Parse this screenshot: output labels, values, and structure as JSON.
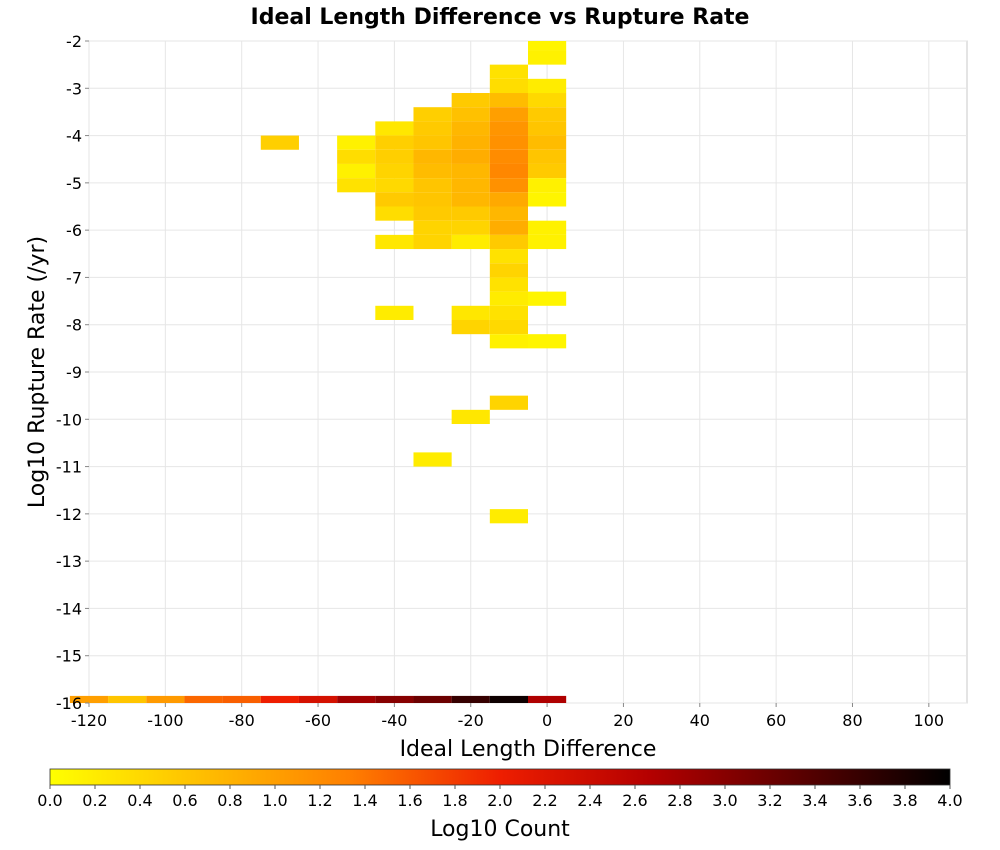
{
  "chart_data": {
    "type": "heatmap",
    "title": "Ideal Length Difference vs Rupture Rate",
    "xlabel": "Ideal Length Difference",
    "ylabel": "Log10 Rupture Rate (/yr)",
    "xlim": [
      -120,
      110
    ],
    "ylim": [
      -16,
      -2
    ],
    "x_ticks": [
      "-120",
      "-100",
      "-80",
      "-60",
      "-40",
      "-20",
      "0",
      "20",
      "40",
      "60",
      "80",
      "100"
    ],
    "y_ticks": [
      "-2",
      "-3",
      "-4",
      "-5",
      "-6",
      "-7",
      "-8",
      "-9",
      "-10",
      "-11",
      "-12",
      "-13",
      "-14",
      "-15",
      "-16"
    ],
    "x_bin_width": 10,
    "y_bin_height": 0.3,
    "grid": true,
    "colorbar": {
      "label": "Log10 Count",
      "range": [
        0,
        4
      ],
      "ticks": [
        "0.0",
        "0.2",
        "0.4",
        "0.6",
        "0.8",
        "1.0",
        "1.2",
        "1.4",
        "1.6",
        "1.8",
        "2.0",
        "2.2",
        "2.4",
        "2.6",
        "2.8",
        "3.0",
        "3.2",
        "3.4",
        "3.6",
        "3.8",
        "4.0"
      ],
      "colors": [
        "#ffff00",
        "#ffbf00",
        "#ff7f00",
        "#ee1e00",
        "#b40000",
        "#5a0000",
        "#000000"
      ]
    },
    "cells": [
      {
        "x": 0,
        "y": -2.05,
        "v": 0.1
      },
      {
        "x": 0,
        "y": -2.35,
        "v": 0.15
      },
      {
        "x": -10,
        "y": -2.65,
        "v": 0.3
      },
      {
        "x": -10,
        "y": -2.95,
        "v": 0.35
      },
      {
        "x": 0,
        "y": -2.95,
        "v": 0.2
      },
      {
        "x": -20,
        "y": -3.25,
        "v": 0.55
      },
      {
        "x": -10,
        "y": -3.25,
        "v": 0.7
      },
      {
        "x": 0,
        "y": -3.25,
        "v": 0.4
      },
      {
        "x": -30,
        "y": -3.55,
        "v": 0.5
      },
      {
        "x": -20,
        "y": -3.55,
        "v": 0.65
      },
      {
        "x": -10,
        "y": -3.55,
        "v": 1.0
      },
      {
        "x": 0,
        "y": -3.55,
        "v": 0.55
      },
      {
        "x": -40,
        "y": -3.85,
        "v": 0.25
      },
      {
        "x": -30,
        "y": -3.85,
        "v": 0.55
      },
      {
        "x": -20,
        "y": -3.85,
        "v": 0.75
      },
      {
        "x": -10,
        "y": -3.85,
        "v": 1.1
      },
      {
        "x": 0,
        "y": -3.85,
        "v": 0.6
      },
      {
        "x": -70,
        "y": -4.15,
        "v": 0.5
      },
      {
        "x": -50,
        "y": -4.15,
        "v": 0.15
      },
      {
        "x": -40,
        "y": -4.15,
        "v": 0.5
      },
      {
        "x": -30,
        "y": -4.15,
        "v": 0.6
      },
      {
        "x": -20,
        "y": -4.15,
        "v": 0.8
      },
      {
        "x": -10,
        "y": -4.15,
        "v": 1.15
      },
      {
        "x": 0,
        "y": -4.15,
        "v": 0.7
      },
      {
        "x": -50,
        "y": -4.45,
        "v": 0.35
      },
      {
        "x": -40,
        "y": -4.45,
        "v": 0.5
      },
      {
        "x": -30,
        "y": -4.45,
        "v": 0.75
      },
      {
        "x": -20,
        "y": -4.45,
        "v": 0.85
      },
      {
        "x": -10,
        "y": -4.45,
        "v": 1.2
      },
      {
        "x": 0,
        "y": -4.45,
        "v": 0.6
      },
      {
        "x": -50,
        "y": -4.75,
        "v": 0.15
      },
      {
        "x": -40,
        "y": -4.75,
        "v": 0.45
      },
      {
        "x": -30,
        "y": -4.75,
        "v": 0.7
      },
      {
        "x": -20,
        "y": -4.75,
        "v": 0.75
      },
      {
        "x": -10,
        "y": -4.75,
        "v": 1.25
      },
      {
        "x": 0,
        "y": -4.75,
        "v": 0.55
      },
      {
        "x": -50,
        "y": -5.05,
        "v": 0.3
      },
      {
        "x": -40,
        "y": -5.05,
        "v": 0.4
      },
      {
        "x": -30,
        "y": -5.05,
        "v": 0.6
      },
      {
        "x": -20,
        "y": -5.05,
        "v": 0.75
      },
      {
        "x": -10,
        "y": -5.05,
        "v": 1.15
      },
      {
        "x": 0,
        "y": -5.05,
        "v": 0.15
      },
      {
        "x": -40,
        "y": -5.35,
        "v": 0.55
      },
      {
        "x": -30,
        "y": -5.35,
        "v": 0.6
      },
      {
        "x": -20,
        "y": -5.35,
        "v": 0.75
      },
      {
        "x": -10,
        "y": -5.35,
        "v": 0.9
      },
      {
        "x": 0,
        "y": -5.35,
        "v": 0.1
      },
      {
        "x": -40,
        "y": -5.65,
        "v": 0.35
      },
      {
        "x": -30,
        "y": -5.65,
        "v": 0.55
      },
      {
        "x": -20,
        "y": -5.65,
        "v": 0.55
      },
      {
        "x": -10,
        "y": -5.65,
        "v": 0.75
      },
      {
        "x": -30,
        "y": -5.95,
        "v": 0.45
      },
      {
        "x": -20,
        "y": -5.95,
        "v": 0.45
      },
      {
        "x": -10,
        "y": -5.95,
        "v": 0.85
      },
      {
        "x": 0,
        "y": -5.95,
        "v": 0.15
      },
      {
        "x": -40,
        "y": -6.25,
        "v": 0.25
      },
      {
        "x": -30,
        "y": -6.25,
        "v": 0.45
      },
      {
        "x": -20,
        "y": -6.25,
        "v": 0.2
      },
      {
        "x": -10,
        "y": -6.25,
        "v": 0.55
      },
      {
        "x": 0,
        "y": -6.25,
        "v": 0.15
      },
      {
        "x": -10,
        "y": -6.55,
        "v": 0.3
      },
      {
        "x": -10,
        "y": -6.85,
        "v": 0.45
      },
      {
        "x": -10,
        "y": -7.15,
        "v": 0.3
      },
      {
        "x": -10,
        "y": -7.45,
        "v": 0.2
      },
      {
        "x": 0,
        "y": -7.45,
        "v": 0.1
      },
      {
        "x": -40,
        "y": -7.75,
        "v": 0.2
      },
      {
        "x": -20,
        "y": -7.75,
        "v": 0.25
      },
      {
        "x": -10,
        "y": -7.75,
        "v": 0.3
      },
      {
        "x": -20,
        "y": -8.05,
        "v": 0.45
      },
      {
        "x": -10,
        "y": -8.05,
        "v": 0.4
      },
      {
        "x": -10,
        "y": -8.35,
        "v": 0.15
      },
      {
        "x": 0,
        "y": -8.35,
        "v": 0.1
      },
      {
        "x": -10,
        "y": -9.65,
        "v": 0.45
      },
      {
        "x": -20,
        "y": -9.95,
        "v": 0.25
      },
      {
        "x": -30,
        "y": -10.85,
        "v": 0.2
      },
      {
        "x": -10,
        "y": -12.05,
        "v": 0.2
      },
      {
        "x": -120,
        "y": -16.0,
        "v": 1.0
      },
      {
        "x": -110,
        "y": -16.0,
        "v": 0.6
      },
      {
        "x": -100,
        "y": -16.0,
        "v": 1.05
      },
      {
        "x": -90,
        "y": -16.0,
        "v": 1.5
      },
      {
        "x": -80,
        "y": -16.0,
        "v": 1.55
      },
      {
        "x": -70,
        "y": -16.0,
        "v": 2.0
      },
      {
        "x": -60,
        "y": -16.0,
        "v": 2.3
      },
      {
        "x": -50,
        "y": -16.0,
        "v": 2.8
      },
      {
        "x": -40,
        "y": -16.0,
        "v": 3.0
      },
      {
        "x": -30,
        "y": -16.0,
        "v": 3.2
      },
      {
        "x": -20,
        "y": -16.0,
        "v": 3.6
      },
      {
        "x": -10,
        "y": -16.0,
        "v": 3.9
      },
      {
        "x": 0,
        "y": -16.0,
        "v": 2.7
      }
    ]
  }
}
